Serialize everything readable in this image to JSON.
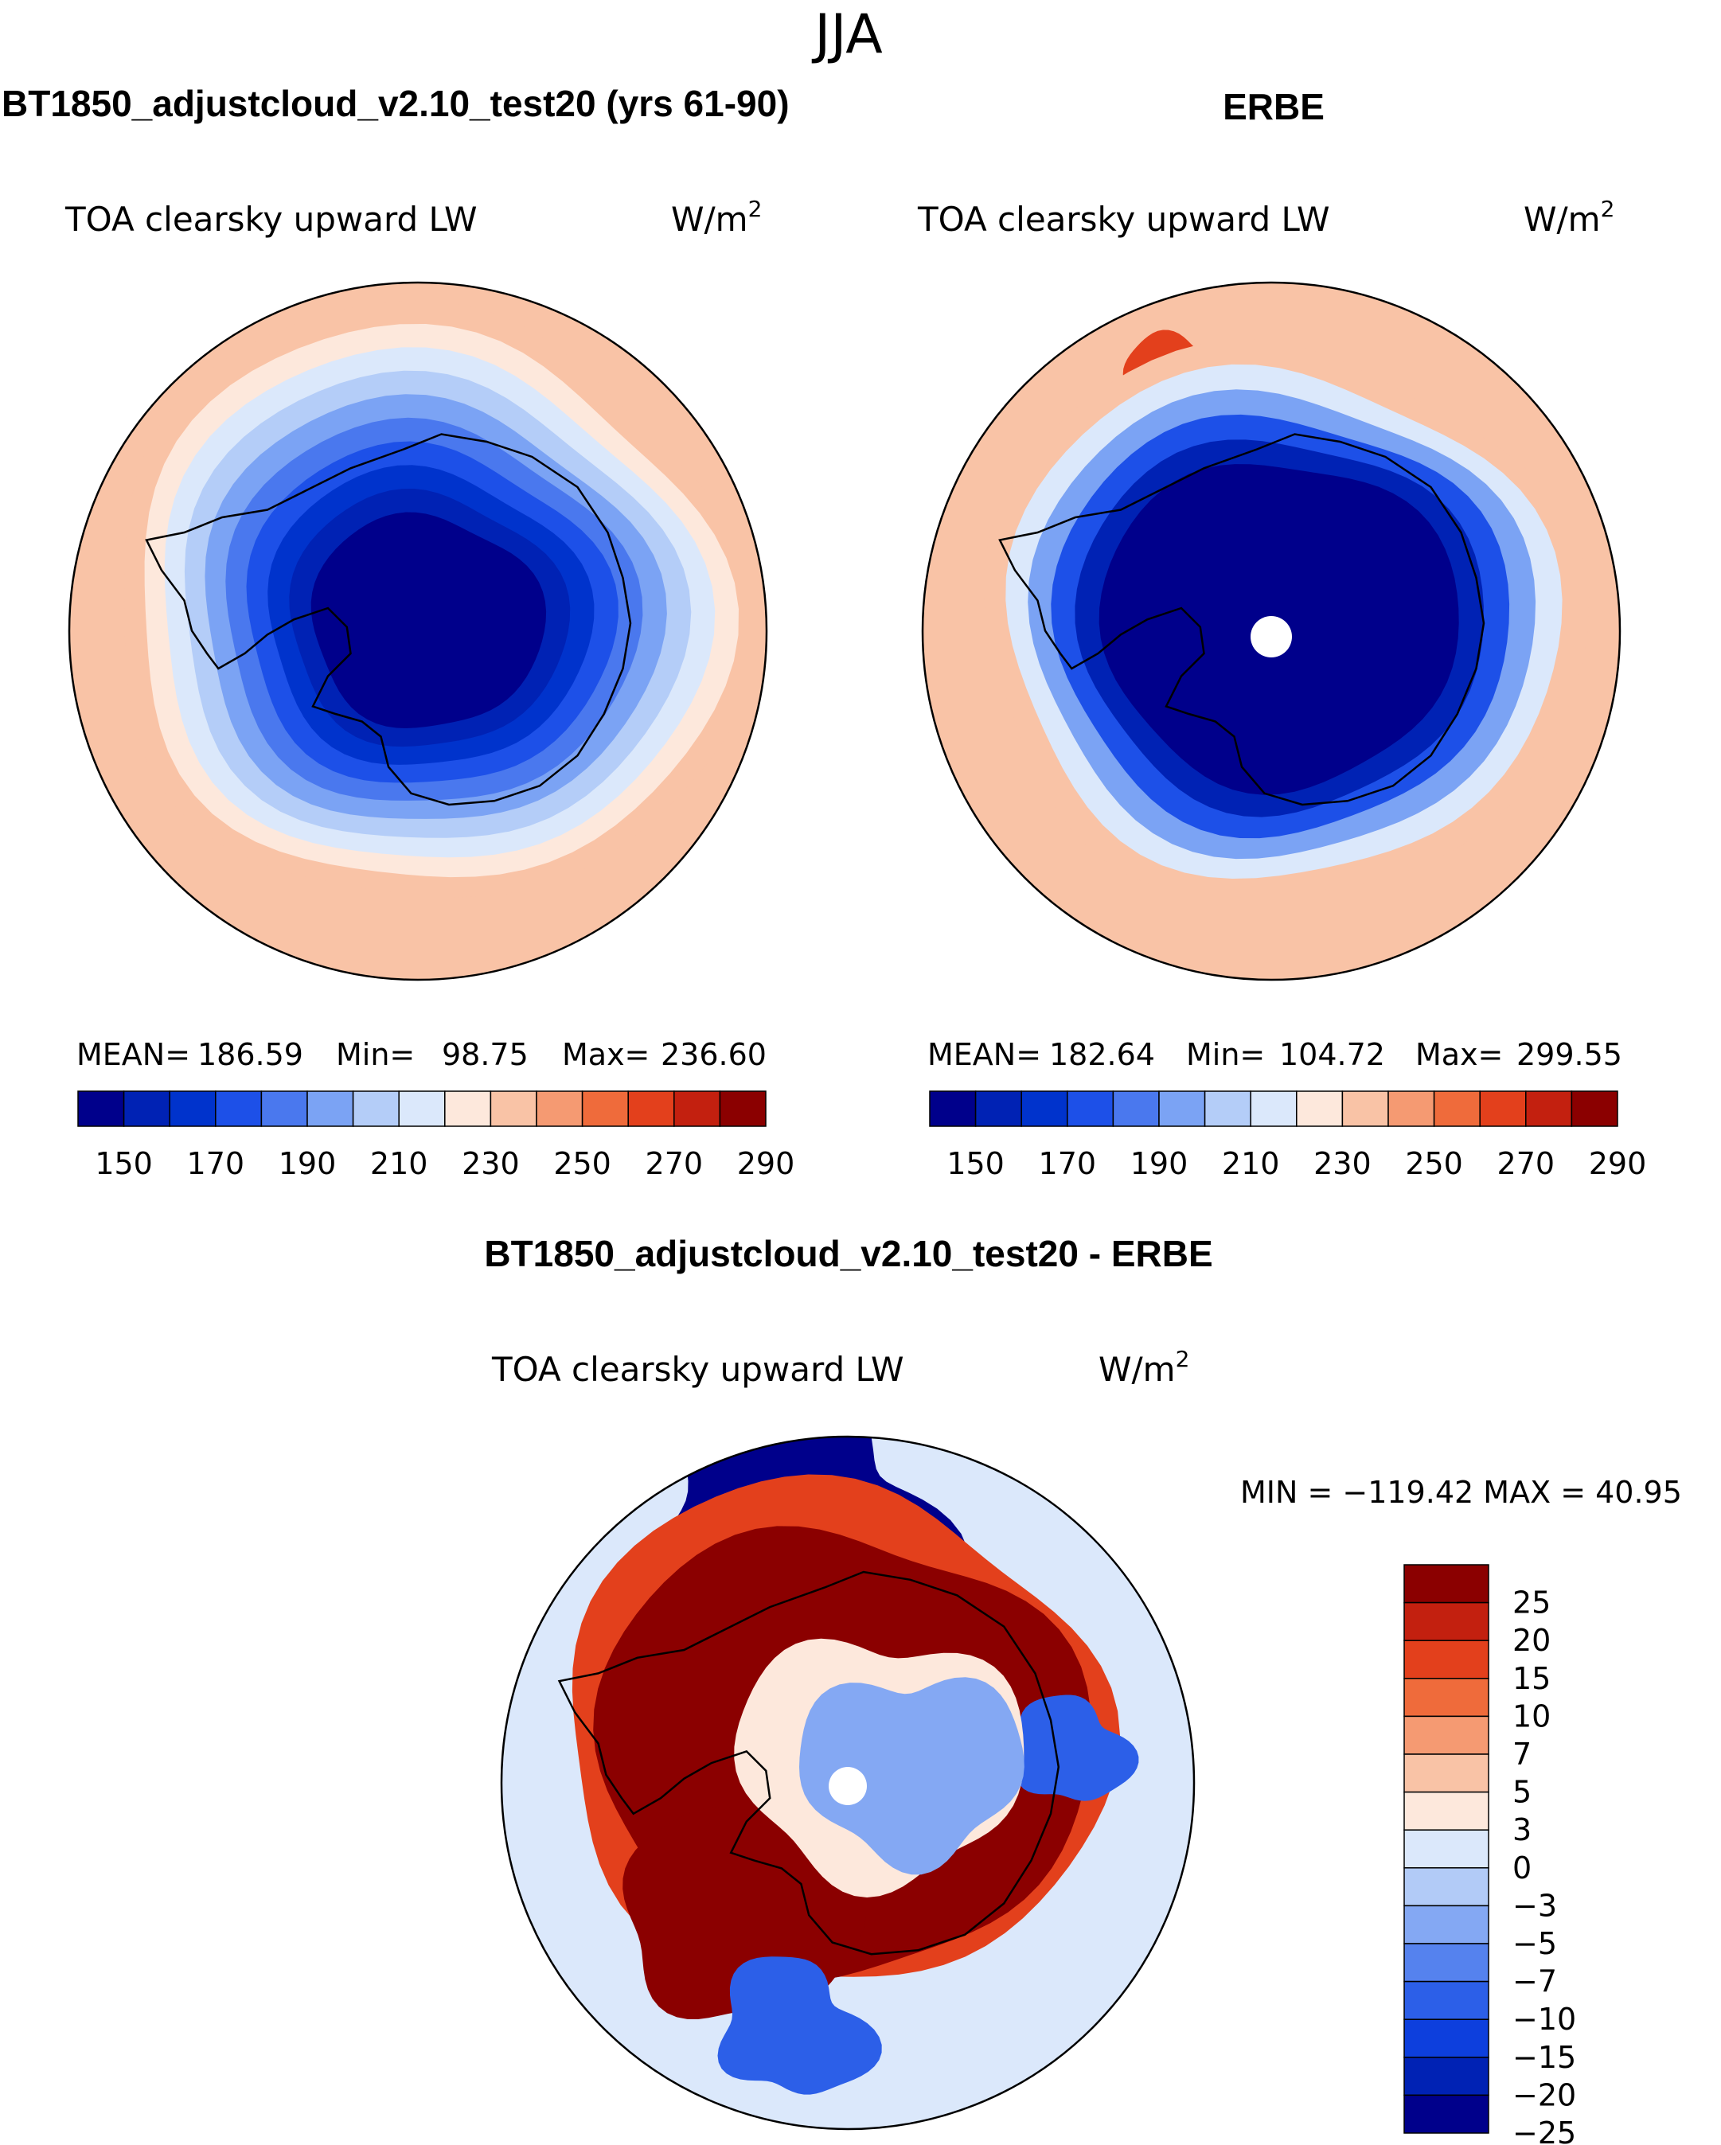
{
  "figure": {
    "season_title": "JJA",
    "colors": {
      "mean_scale": [
        "#00008b",
        "#0022b4",
        "#0033cc",
        "#1d50e8",
        "#4a78ee",
        "#7ba3f4",
        "#b4cdf8",
        "#dbe8fb",
        "#fde8dc",
        "#f9c3a6",
        "#f59a72",
        "#ef6b3b",
        "#e3401c",
        "#c3200f",
        "#8b0000"
      ],
      "diff_scale": [
        "#00008b",
        "#0022b4",
        "#0d3fdd",
        "#2c5fe8",
        "#5582ee",
        "#84a8f3",
        "#b2cbf7",
        "#dbe8fb",
        "#fde8dc",
        "#f9c3a6",
        "#f59a72",
        "#ef6b3b",
        "#e3401c",
        "#c3200f",
        "#8b0000"
      ]
    }
  },
  "panels": {
    "model": {
      "header": "BT1850_adjustcloud_v2.10_test20 (yrs 61-90)",
      "variable": "TOA clearsky upward LW",
      "units_base": "W/m",
      "units_exp": "2",
      "stats": {
        "mean_label": "MEAN=",
        "mean": "186.59",
        "min_label": "Min=",
        "min": "98.75",
        "max_label": "Max=",
        "max": "236.60"
      }
    },
    "obs": {
      "header": "ERBE",
      "variable": "TOA clearsky upward LW",
      "units_base": "W/m",
      "units_exp": "2",
      "stats": {
        "mean_label": "MEAN=",
        "mean": "182.64",
        "min_label": "Min=",
        "min": "104.72",
        "max_label": "Max=",
        "max": "299.55"
      }
    },
    "diff": {
      "header": "BT1850_adjustcloud_v2.10_test20 - ERBE",
      "variable": "TOA clearsky upward LW",
      "units_base": "W/m",
      "units_exp": "2",
      "minmax": "MIN = −119.42 MAX =   40.95"
    }
  },
  "chart_data": [
    {
      "type": "heatmap",
      "projection": "south-polar-stereographic",
      "title": "TOA clearsky upward LW",
      "units": "W/m2",
      "dataset": "BT1850_adjustcloud_v2.10_test20 (yrs 61-90)",
      "mean": 186.59,
      "min": 98.75,
      "max": 236.6,
      "colorbar_levels": [
        150,
        160,
        170,
        180,
        190,
        200,
        210,
        220,
        230,
        240,
        250,
        260,
        270,
        280,
        290
      ],
      "colorbar_tick_labels": [
        "150",
        "170",
        "190",
        "210",
        "230",
        "250",
        "270",
        "290"
      ],
      "ring_levels_pole_to_edge": [
        140,
        150,
        160,
        170,
        180,
        190,
        200,
        210,
        220,
        230
      ]
    },
    {
      "type": "heatmap",
      "projection": "south-polar-stereographic",
      "title": "TOA clearsky upward LW",
      "units": "W/m2",
      "dataset": "ERBE",
      "mean": 182.64,
      "min": 104.72,
      "max": 299.55,
      "colorbar_levels": [
        150,
        160,
        170,
        180,
        190,
        200,
        210,
        220,
        230,
        240,
        250,
        260,
        270,
        280,
        290
      ],
      "colorbar_tick_labels": [
        "150",
        "170",
        "190",
        "210",
        "230",
        "250",
        "270",
        "290"
      ],
      "ring_levels_pole_to_edge": [
        140,
        150,
        170,
        190,
        210,
        230
      ]
    },
    {
      "type": "heatmap",
      "projection": "south-polar-stereographic",
      "title": "TOA clearsky upward LW",
      "units": "W/m2",
      "dataset": "BT1850_adjustcloud_v2.10_test20 - ERBE",
      "min": -119.42,
      "max": 40.95,
      "colorbar_levels": [
        -25,
        -20,
        -15,
        -10,
        -7,
        -5,
        -3,
        0,
        3,
        5,
        7,
        10,
        15,
        20,
        25
      ],
      "colorbar_tick_labels": [
        "−25",
        "−20",
        "−15",
        "−10",
        "−7",
        "−5",
        "−3",
        "0",
        "3",
        "5",
        "7",
        "10",
        "15",
        "20",
        "25"
      ]
    }
  ]
}
